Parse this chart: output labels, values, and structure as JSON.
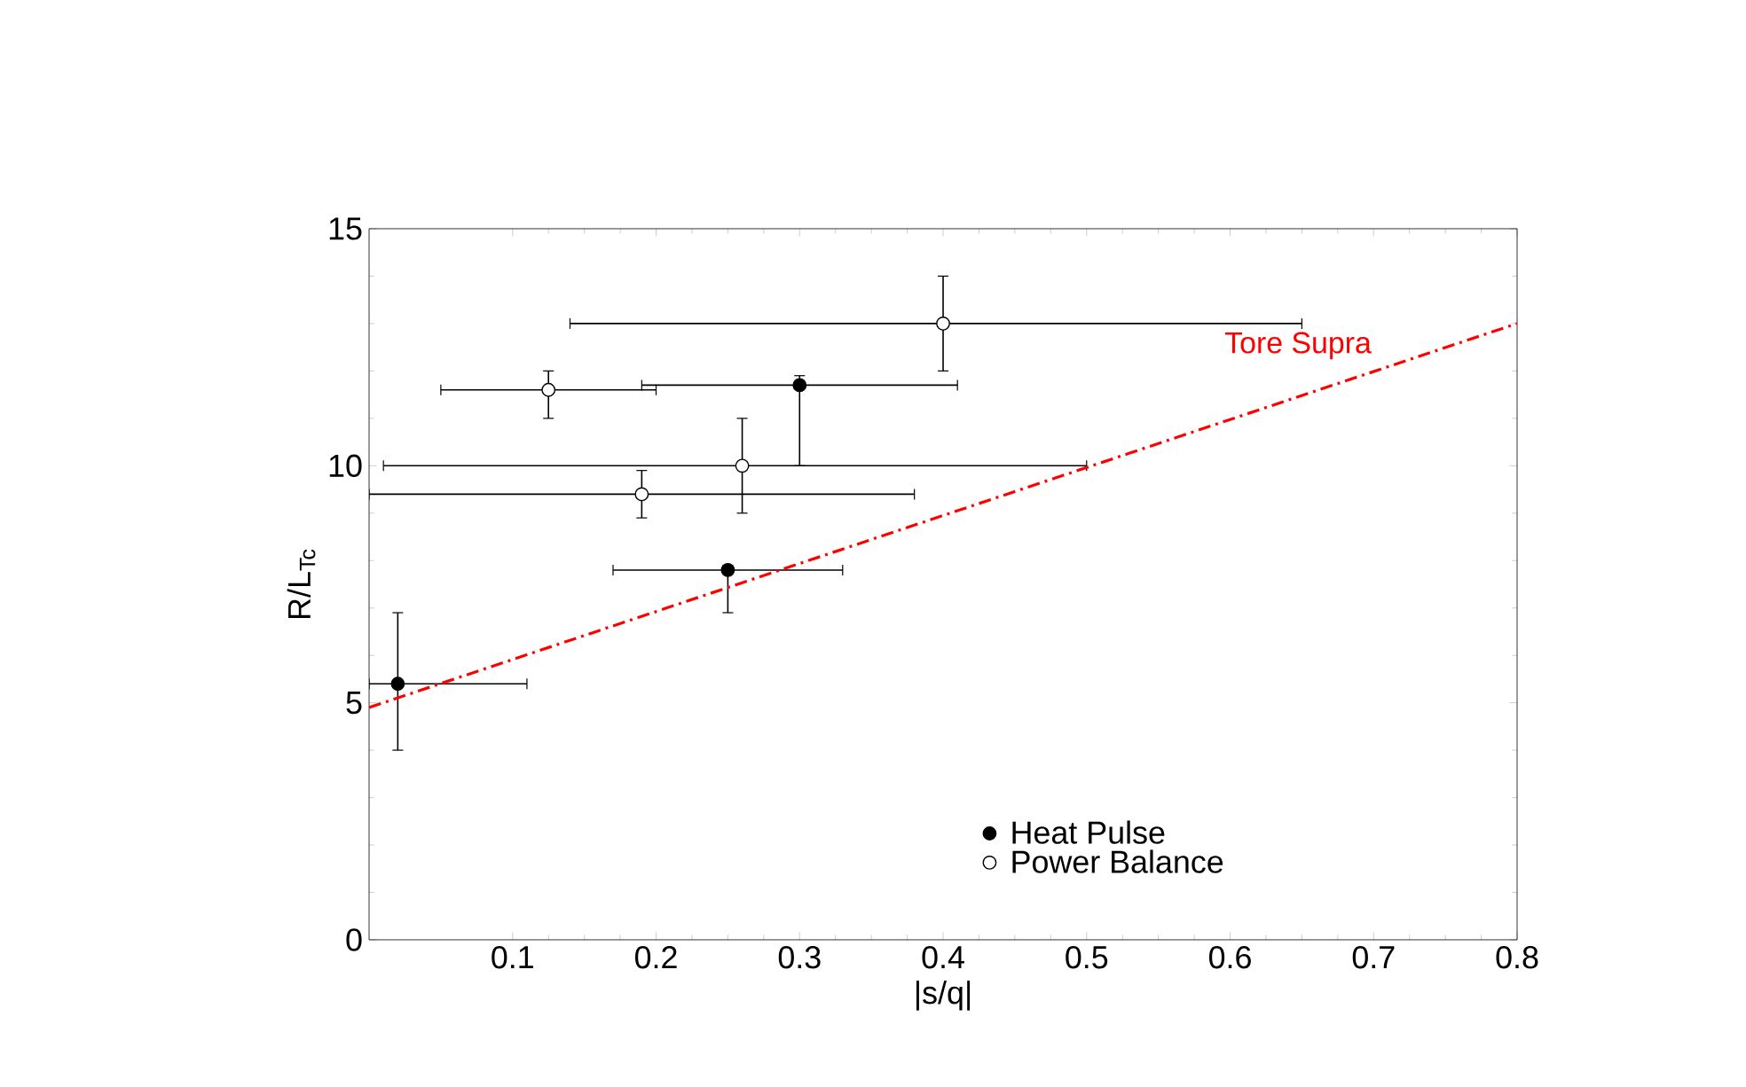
{
  "chart_data": {
    "type": "scatter",
    "xlabel": "|s/q|",
    "ylabel": "R/L$_{Tc}$",
    "xlim": [
      0,
      0.8
    ],
    "ylim": [
      0,
      15
    ],
    "xticks": [
      0.1,
      0.2,
      0.3,
      0.4,
      0.5,
      0.6,
      0.7,
      0.8
    ],
    "yticks": [
      0,
      5,
      10,
      15
    ],
    "grid": false,
    "legend": "bottom right",
    "series": [
      {
        "name": "Heat Pulse",
        "color": "#000000",
        "marker": "circle",
        "x": [
          0.02,
          0.25,
          0.3
        ],
        "values": [
          5.4,
          7.8,
          11.7
        ],
        "errors": [
          [
            4.0,
            6.9
          ],
          [
            6.9,
            7.9
          ],
          [
            10.0,
            11.9
          ]
        ],
        "xerrors": [
          [
            0.0,
            0.11
          ],
          [
            0.17,
            0.33
          ],
          [
            0.19,
            0.41
          ]
        ]
      },
      {
        "name": "Power Balance",
        "color": "#ffffff",
        "marker": "circle",
        "x": [
          0.125,
          0.19,
          0.26,
          0.4
        ],
        "values": [
          11.6,
          9.4,
          10.0,
          13.0
        ],
        "errors": [
          [
            11.0,
            12.0
          ],
          [
            8.9,
            9.9
          ],
          [
            9.0,
            11.0
          ],
          [
            12.0,
            14.0
          ]
        ],
        "xerrors": [
          [
            0.05,
            0.2
          ],
          [
            0.0,
            0.38
          ],
          [
            0.01,
            0.5
          ],
          [
            0.14,
            0.65
          ]
        ]
      },
      {
        "name": "Tore Supra",
        "type": "line",
        "color": "#ff0000",
        "line_style": "dashed",
        "marker": "none",
        "x": [
          0.0,
          0.8
        ],
        "values": [
          4.9,
          13.0
        ]
      }
    ]
  }
}
